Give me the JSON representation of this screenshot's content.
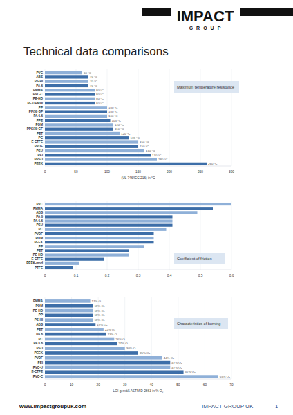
{
  "page": {
    "logo": "IMPACT",
    "logo_sub": "GROUP",
    "title": "Technical data comparisons",
    "footer_url": "www.impactgroupuk.com",
    "footer_company": "IMPACT GROUP UK",
    "page_number": 1
  },
  "chart_data": [
    {
      "type": "bar",
      "orientation": "horizontal",
      "title": "Maximum temperature resistance",
      "x_label": "(UL 746/IEC 216) in °C",
      "categories": [
        "PVC",
        "ABS",
        "PS-HI",
        "PA 6",
        "PMMA",
        "PVC-C",
        "PE-HD",
        "PE-UHMW",
        "PP",
        "PP/30 GF",
        "PA 6.6",
        "PPE",
        "POM",
        "PPS/30 GF",
        "PET",
        "PC",
        "E-CTFE",
        "PVDF",
        "PSU",
        "PEI",
        "PPSU",
        "PEEK"
      ],
      "values": [
        60,
        70,
        70,
        70,
        80,
        80,
        80,
        80,
        100,
        100,
        100,
        105,
        110,
        110,
        120,
        135,
        150,
        150,
        160,
        170,
        180,
        260
      ],
      "value_labels": [
        "60 °C",
        "70 °C",
        "70 °C",
        "70 °C",
        "80 °C",
        "80 °C",
        "80 °C",
        "80 °C",
        "100 °C",
        "100 °C",
        "100 °C",
        "105 °C",
        "110 °C",
        "110 °C",
        "120 °C",
        "135 °C",
        "150 °C",
        "150 °C",
        "160 °C",
        "170 °C",
        "180 °C",
        "260 °C"
      ],
      "colors": [
        "#8fb0d8",
        "#3d6ea8",
        "#8fb0d8",
        "#3d6ea8",
        "#8fb0d8",
        "#3d6ea8",
        "#8fb0d8",
        "#3d6ea8",
        "#8fb0d8",
        "#3d6ea8",
        "#8fb0d8",
        "#3d6ea8",
        "#8fb0d8",
        "#3d6ea8",
        "#8fb0d8",
        "#3d6ea8",
        "#8fb0d8",
        "#3d6ea8",
        "#8fb0d8",
        "#3d6ea8",
        "#8fb0d8",
        "#3d6ea8"
      ],
      "xlim": [
        0,
        300
      ],
      "xticks": [
        0,
        50,
        100,
        150,
        200,
        250,
        300
      ],
      "grid": true,
      "data_labels": true
    },
    {
      "type": "bar",
      "orientation": "horizontal",
      "title": "Coefficient of friction",
      "categories": [
        "PVC",
        "PMMA",
        "ABS",
        "PA 6",
        "PA 6.6",
        "PSU",
        "PC",
        "PVDF",
        "POM",
        "PEEK",
        "PP",
        "PET",
        "PE-HD",
        "E-CTFE",
        "PEEK-mod",
        "PTFE"
      ],
      "values": [
        0.6,
        0.54,
        0.49,
        0.41,
        0.41,
        0.41,
        0.39,
        0.35,
        0.35,
        0.35,
        0.32,
        0.27,
        0.27,
        0.19,
        0.11,
        0.09
      ],
      "colors": [
        "#8fb0d8",
        "#3d6ea8",
        "#8fb0d8",
        "#3d6ea8",
        "#8fb0d8",
        "#3d6ea8",
        "#8fb0d8",
        "#3d6ea8",
        "#8fb0d8",
        "#3d6ea8",
        "#8fb0d8",
        "#3d6ea8",
        "#8fb0d8",
        "#3d6ea8",
        "#8fb0d8",
        "#3d6ea8"
      ],
      "xlim": [
        0,
        0.6
      ],
      "xticks": [
        0,
        0.1,
        0.2,
        0.3,
        0.4,
        0.5,
        0.6
      ],
      "grid": true,
      "data_labels": false
    },
    {
      "type": "bar",
      "orientation": "horizontal",
      "title": "Characteristics of burning",
      "x_label": "LOI gemäß ASTM D 2863 in % O₂",
      "categories": [
        "PMMA",
        "POM",
        "PE-HD",
        "PP",
        "PS-HI",
        "ABS",
        "PET",
        "PA 6",
        "PC",
        "PA 6.6",
        "PSU",
        "PEEK",
        "PVDF",
        "PEI",
        "PVC-U",
        "E-CTFE",
        "PVC-C"
      ],
      "values": [
        17,
        18,
        18,
        18,
        18,
        19,
        22,
        23,
        26,
        27,
        30,
        35,
        44,
        47,
        47,
        52,
        65
      ],
      "value_labels": [
        "17% O₂",
        "18% O₂",
        "18% O₂",
        "18% O₂",
        "18% O₂",
        "19% O₂",
        "22% O₂",
        "23% O₂",
        "26% O₂",
        "27% O₂",
        "30% O₂",
        "35% O₂",
        "44% O₂",
        "47% O₂",
        "47% O₂",
        "52% O₂",
        "65% O₂"
      ],
      "colors": [
        "#8fb0d8",
        "#3d6ea8",
        "#8fb0d8",
        "#3d6ea8",
        "#8fb0d8",
        "#3d6ea8",
        "#8fb0d8",
        "#3d6ea8",
        "#8fb0d8",
        "#3d6ea8",
        "#8fb0d8",
        "#3d6ea8",
        "#8fb0d8",
        "#3d6ea8",
        "#8fb0d8",
        "#3d6ea8",
        "#8fb0d8"
      ],
      "xlim": [
        0,
        70
      ],
      "xticks": [
        0,
        10,
        20,
        30,
        40,
        50,
        60,
        70
      ],
      "grid": true,
      "data_labels": true
    }
  ]
}
